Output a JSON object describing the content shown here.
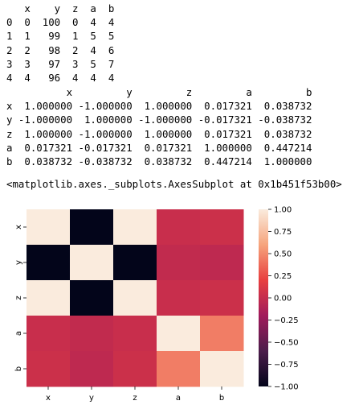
{
  "df1": {
    "columns": [
      "x",
      "y",
      "z",
      "a",
      "b"
    ],
    "index": [
      "0",
      "1",
      "2",
      "3",
      "4"
    ],
    "rows": [
      [
        0,
        100,
        0,
        4,
        4
      ],
      [
        1,
        99,
        1,
        5,
        5
      ],
      [
        2,
        98,
        2,
        4,
        6
      ],
      [
        3,
        97,
        3,
        5,
        7
      ],
      [
        4,
        96,
        4,
        4,
        4
      ]
    ],
    "text": "   x    y  z  a  b\n0  0  100  0  4  4\n1  1   99  1  5  5\n2  2   98  2  4  6\n3  3   97  3  5  7\n4  4   96  4  4  4"
  },
  "corr": {
    "text": "          x         y         z         a         b\nx  1.000000 -1.000000  1.000000  0.017321  0.038732\ny -1.000000  1.000000 -1.000000 -0.017321 -0.038732\nz  1.000000 -1.000000  1.000000  0.017321  0.038732\na  0.017321 -0.017321  0.017321  1.000000  0.447214\nb  0.038732 -0.038732  0.038732  0.447214  1.000000"
  },
  "output_repr": "<matplotlib.axes._subplots.AxesSubplot at 0x1b451f53b00>",
  "chart_data": {
    "type": "heatmap",
    "x_categories": [
      "x",
      "y",
      "z",
      "a",
      "b"
    ],
    "y_categories": [
      "x",
      "y",
      "z",
      "a",
      "b"
    ],
    "values": [
      [
        1.0,
        -1.0,
        1.0,
        0.017321,
        0.038732
      ],
      [
        -1.0,
        1.0,
        -1.0,
        -0.017321,
        -0.038732
      ],
      [
        1.0,
        -1.0,
        1.0,
        0.017321,
        0.038732
      ],
      [
        0.017321,
        -0.017321,
        0.017321,
        1.0,
        0.447214
      ],
      [
        0.038732,
        -0.038732,
        0.038732,
        0.447214,
        1.0
      ]
    ],
    "colorbar_range": [
      -1.0,
      1.0
    ],
    "colorbar_ticks": [
      "1.00",
      "0.75",
      "0.50",
      "0.25",
      "0.00",
      "−0.25",
      "−0.50",
      "−0.75",
      "−1.00"
    ],
    "colorbar_tick_values": [
      1.0,
      0.75,
      0.5,
      0.25,
      0.0,
      -0.25,
      -0.5,
      -0.75,
      -1.0
    ],
    "colormap": "rocket",
    "colormap_stops": [
      "#03051a",
      "#4c1d4b",
      "#a11a5b",
      "#e83f3f",
      "#f6a47c",
      "#faebdd"
    ]
  }
}
